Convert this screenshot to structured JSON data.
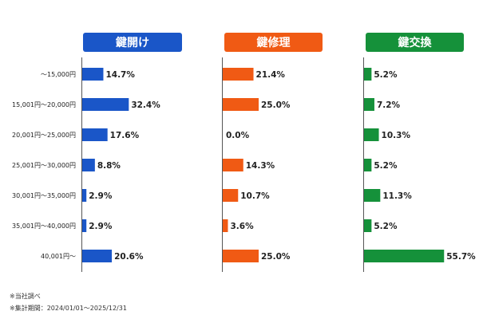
{
  "chart_data": {
    "type": "bar",
    "orientation": "horizontal",
    "categories": [
      "〜15,000円",
      "15,001円〜20,000円",
      "20,001円〜25,000円",
      "25,001円〜30,000円",
      "30,001円〜35,000円",
      "35,001円〜40,000円",
      "40,001円〜"
    ],
    "series": [
      {
        "name": "鍵開け",
        "color": "#1a56c8",
        "values": [
          14.7,
          32.4,
          17.6,
          8.8,
          2.9,
          2.9,
          20.6
        ],
        "labels": [
          "14.7%",
          "32.4%",
          "17.6%",
          "8.8%",
          "2.9%",
          "2.9%",
          "20.6%"
        ]
      },
      {
        "name": "鍵修理",
        "color": "#f05a14",
        "values": [
          21.4,
          25.0,
          0.0,
          14.3,
          10.7,
          3.6,
          25.0
        ],
        "labels": [
          "21.4%",
          "25.0%",
          "0.0%",
          "14.3%",
          "10.7%",
          "3.6%",
          "25.0%"
        ]
      },
      {
        "name": "鍵交換",
        "color": "#15913a",
        "values": [
          5.2,
          7.2,
          10.3,
          5.2,
          11.3,
          5.2,
          55.7
        ],
        "labels": [
          "5.2%",
          "7.2%",
          "10.3%",
          "5.2%",
          "11.3%",
          "5.2%",
          "55.7%"
        ]
      }
    ],
    "grid": false,
    "legend": "none"
  },
  "notes": {
    "source": "※当社調べ",
    "period": "※集計期間：2024/01/01〜2025/12/31"
  }
}
